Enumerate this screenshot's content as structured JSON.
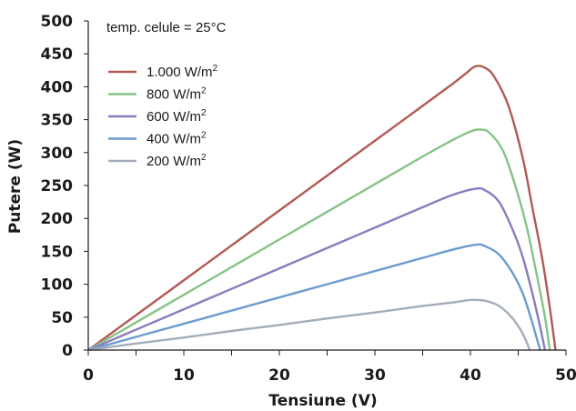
{
  "chart_data": {
    "type": "line",
    "xlabel": "Tensiune (V)",
    "ylabel": "Putere (W)",
    "annotation": "temp. celule = 25°C",
    "xlim": [
      0,
      50
    ],
    "ylim": [
      0,
      500
    ],
    "xticks": [
      "0",
      "10",
      "20",
      "30",
      "40",
      "50"
    ],
    "yticks": [
      "0",
      "50",
      "100",
      "150",
      "200",
      "250",
      "300",
      "350",
      "400",
      "450",
      "500"
    ],
    "grid": false,
    "legend_position": "top-left",
    "series": [
      {
        "name": "1.000 W/m",
        "unit_superscript": "2",
        "color": "#b05a55",
        "x": [
          0,
          5,
          10,
          15,
          20,
          25,
          30,
          35,
          38,
          39.5,
          40.5,
          41.5,
          42.5,
          44,
          45.5,
          46.5,
          47.5,
          48.3,
          48.9
        ],
        "y": [
          0,
          53,
          106,
          159,
          212,
          265,
          318,
          371,
          403,
          420,
          431,
          429,
          415,
          370,
          290,
          215,
          140,
          65,
          0
        ]
      },
      {
        "name": "800 W/m",
        "unit_superscript": "2",
        "color": "#86c386",
        "x": [
          0,
          5,
          10,
          15,
          20,
          25,
          30,
          35,
          38,
          40,
          41,
          42,
          43.5,
          45,
          46,
          47,
          47.8,
          48.3
        ],
        "y": [
          0,
          42,
          84,
          126,
          168,
          210,
          252,
          294,
          318,
          332,
          335,
          330,
          300,
          235,
          180,
          110,
          50,
          0
        ]
      },
      {
        "name": "600 W/m",
        "unit_superscript": "2",
        "color": "#8b7bbd",
        "x": [
          0,
          5,
          10,
          15,
          20,
          25,
          30,
          35,
          38,
          40.5,
          41.5,
          43,
          44.5,
          45.5,
          46.5,
          47.3,
          47.8
        ],
        "y": [
          0,
          31,
          62,
          93,
          124,
          155,
          186,
          217,
          235,
          245,
          243,
          225,
          180,
          140,
          85,
          35,
          0
        ]
      },
      {
        "name": "400 W/m",
        "unit_superscript": "2",
        "color": "#6b9ccf",
        "x": [
          0,
          5,
          10,
          15,
          20,
          25,
          30,
          35,
          38,
          40.5,
          41.5,
          43,
          44.5,
          45.5,
          46.3,
          46.9,
          47.3
        ],
        "y": [
          0,
          20,
          40,
          60,
          80,
          100,
          120,
          140,
          152,
          160,
          158,
          145,
          115,
          85,
          50,
          20,
          0
        ]
      },
      {
        "name": "200 W/m",
        "unit_superscript": "2",
        "color": "#a3adb9",
        "x": [
          0,
          5,
          10,
          15,
          20,
          25,
          30,
          35,
          38,
          40,
          41.5,
          43,
          44.3,
          45.2,
          45.8,
          46.2
        ],
        "y": [
          0,
          10,
          19,
          29,
          38,
          48,
          57,
          67,
          72,
          76,
          75,
          67,
          50,
          32,
          15,
          0
        ]
      }
    ]
  }
}
